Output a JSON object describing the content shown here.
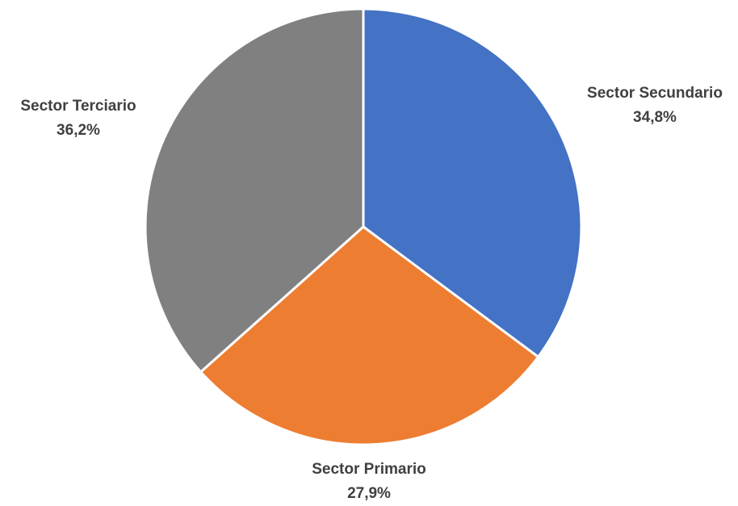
{
  "chart_data": {
    "type": "pie",
    "title": "",
    "legend": "none",
    "start": "top",
    "direction": "clockwise",
    "slices": [
      {
        "label": "Sector Secundario",
        "value": 34.8,
        "display": "34,8%",
        "color": "#4472C4"
      },
      {
        "label": "Sector Primario",
        "value": 27.9,
        "display": "27,9%",
        "color": "#ED7D31"
      },
      {
        "label": "Sector Terciario",
        "value": 36.2,
        "display": "36,2%",
        "color": "#808080"
      }
    ]
  }
}
